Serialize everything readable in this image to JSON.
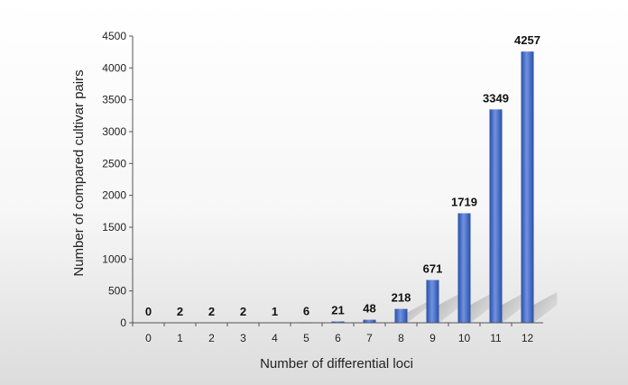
{
  "chart_data": {
    "type": "bar",
    "title": "",
    "xlabel": "Number of differential loci",
    "ylabel": "Number of compared cultivar pairs",
    "categories": [
      "0",
      "1",
      "2",
      "3",
      "4",
      "5",
      "6",
      "7",
      "8",
      "9",
      "10",
      "11",
      "12"
    ],
    "values": [
      0,
      2,
      2,
      2,
      1,
      6,
      21,
      48,
      218,
      671,
      1719,
      3349,
      4257
    ],
    "data_labels": [
      "0",
      "2",
      "2",
      "2",
      "1",
      "6",
      "21",
      "48",
      "218",
      "671",
      "1719",
      "3349",
      "4257"
    ],
    "ylim": [
      0,
      4500
    ],
    "yticks": [
      0,
      500,
      1000,
      1500,
      2000,
      2500,
      3000,
      3500,
      4000,
      4500
    ],
    "grid": false,
    "legend": "none",
    "bar_color": "#3f68c8",
    "bar_color_light": "#6f93e0",
    "bar_color_dark": "#2a4ea8"
  }
}
